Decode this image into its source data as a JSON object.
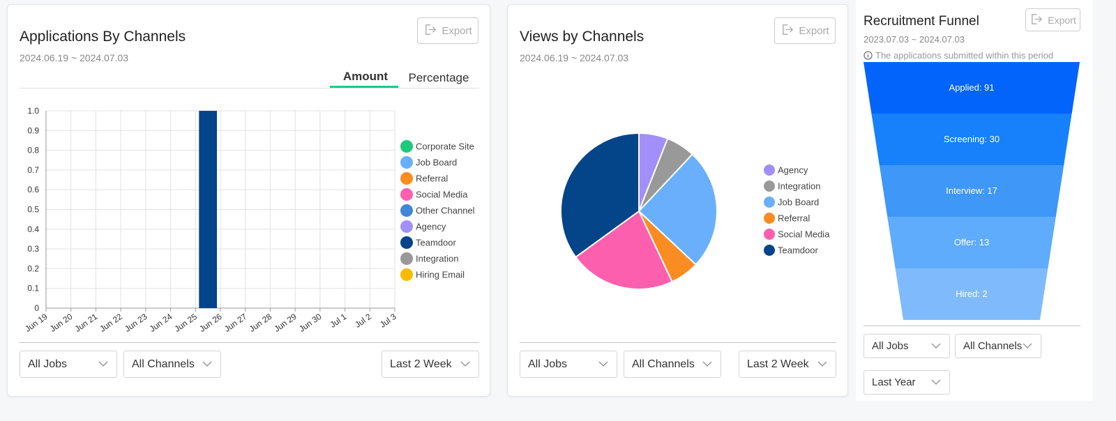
{
  "applications_card": {
    "title": "Applications By Channels",
    "date_range": "2024.06.19 ~ 2024.07.03",
    "export_label": "Export",
    "tabs": [
      {
        "label": "Amount",
        "active": true
      },
      {
        "label": "Percentage",
        "active": false
      }
    ],
    "accent_color": "#1ec987",
    "filters": {
      "jobs": "All Jobs",
      "channels": "All Channels",
      "period": "Last 2 Week"
    }
  },
  "views_card": {
    "title": "Views by Channels",
    "date_range": "2024.06.19 ~ 2024.07.03",
    "export_label": "Export",
    "filters": {
      "jobs": "All Jobs",
      "channels": "All Channels",
      "period": "Last 2 Week"
    }
  },
  "funnel_card": {
    "title": "Recruitment Funnel",
    "date_range": "2023.07.03 ~ 2024.07.03",
    "export_label": "Export",
    "info": "The applications submitted within this period",
    "filters": {
      "jobs": "All Jobs",
      "channels": "All Channels",
      "period": "Last Year"
    }
  },
  "icons": [
    "export-icon",
    "chevron-down-icon",
    "info-icon"
  ],
  "chart_data": [
    {
      "type": "bar",
      "title": "Applications By Channels",
      "categories": [
        "Jun 19",
        "Jun 20",
        "Jun 21",
        "Jun 22",
        "Jun 23",
        "Jun 24",
        "Jun 25",
        "Jun 26",
        "Jun 27",
        "Jun 28",
        "Jun 29",
        "Jun 30",
        "Jul 1",
        "Jul 2",
        "Jul 3"
      ],
      "yticks": [
        "0",
        "0.1",
        "0.2",
        "0.3",
        "0.4",
        "0.5",
        "0.6",
        "0.7",
        "0.8",
        "0.9",
        "1.0"
      ],
      "ylim": [
        0,
        1
      ],
      "grid": true,
      "legend_position": "right",
      "series": [
        {
          "name": "Corporate Site",
          "color": "#1ec97a",
          "values": [
            0,
            0,
            0,
            0,
            0,
            0,
            0,
            0,
            0,
            0,
            0,
            0,
            0,
            0,
            0
          ]
        },
        {
          "name": "Job Board",
          "color": "#6aaffc",
          "values": [
            0,
            0,
            0,
            0,
            0,
            0,
            0,
            0,
            0,
            0,
            0,
            0,
            0,
            0,
            0
          ]
        },
        {
          "name": "Referral",
          "color": "#fb8c22",
          "values": [
            0,
            0,
            0,
            0,
            0,
            0,
            0,
            0,
            0,
            0,
            0,
            0,
            0,
            0,
            0
          ]
        },
        {
          "name": "Social Media",
          "color": "#fd5faf",
          "values": [
            0,
            0,
            0,
            0,
            0,
            0,
            0,
            0,
            0,
            0,
            0,
            0,
            0,
            0,
            0
          ]
        },
        {
          "name": "Other Channel",
          "color": "#4385d8",
          "values": [
            0,
            0,
            0,
            0,
            0,
            0,
            0,
            0,
            0,
            0,
            0,
            0,
            0,
            0,
            0
          ]
        },
        {
          "name": "Agency",
          "color": "#a28ffa",
          "values": [
            0,
            0,
            0,
            0,
            0,
            0,
            0,
            0,
            0,
            0,
            0,
            0,
            0,
            0,
            0
          ]
        },
        {
          "name": "Teamdoor",
          "color": "#04458a",
          "values": [
            0,
            0,
            0,
            0,
            0,
            0,
            1,
            0,
            0,
            0,
            0,
            0,
            0,
            0,
            0
          ]
        },
        {
          "name": "Integration",
          "color": "#999999",
          "values": [
            0,
            0,
            0,
            0,
            0,
            0,
            0,
            0,
            0,
            0,
            0,
            0,
            0,
            0,
            0
          ]
        },
        {
          "name": "Hiring Email",
          "color": "#fbb900",
          "values": [
            0,
            0,
            0,
            0,
            0,
            0,
            0,
            0,
            0,
            0,
            0,
            0,
            0,
            0,
            0
          ]
        }
      ]
    },
    {
      "type": "pie",
      "title": "Views by Channels",
      "legend_position": "right",
      "slices": [
        {
          "name": "Agency",
          "value": 6,
          "color": "#a28ffa"
        },
        {
          "name": "Integration",
          "value": 6,
          "color": "#999999"
        },
        {
          "name": "Job Board",
          "value": 25,
          "color": "#6aaffc"
        },
        {
          "name": "Referral",
          "value": 6,
          "color": "#fb8c22"
        },
        {
          "name": "Social Media",
          "value": 22,
          "color": "#fd5faf"
        },
        {
          "name": "Teamdoor",
          "value": 35,
          "color": "#04458a"
        }
      ]
    },
    {
      "type": "funnel",
      "title": "Recruitment Funnel",
      "stages": [
        {
          "label": "Applied: 91",
          "name": "Applied",
          "value": 91,
          "color": "#0364fb"
        },
        {
          "label": "Screening: 30",
          "name": "Screening",
          "value": 30,
          "color": "#1681fb"
        },
        {
          "label": "Interview: 17",
          "name": "Interview",
          "value": 17,
          "color": "#3f97f7"
        },
        {
          "label": "Offer: 13",
          "name": "Offer",
          "value": 13,
          "color": "#5eacfb"
        },
        {
          "label": "Hired: 2",
          "name": "Hired",
          "value": 2,
          "color": "#7fbbfc"
        }
      ]
    }
  ]
}
